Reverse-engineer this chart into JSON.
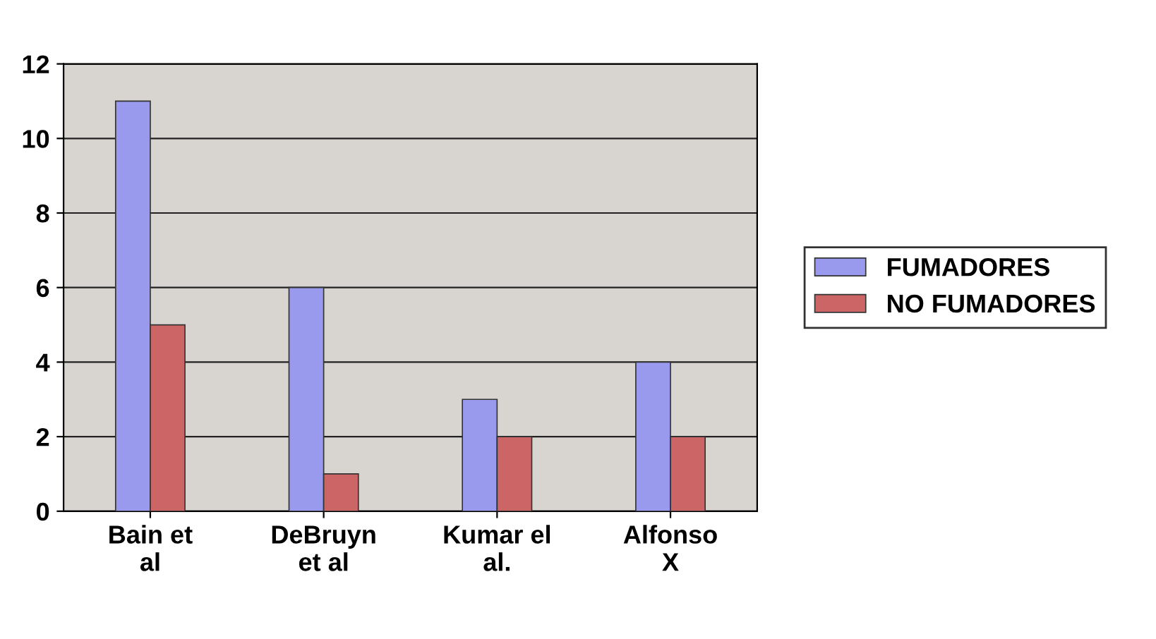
{
  "chart_data": {
    "type": "bar",
    "categories": [
      "Bain et\nal",
      "DeBruyn\net al",
      "Kumar el\nal.",
      "Alfonso\nX"
    ],
    "series": [
      {
        "name": "FUMADORES",
        "color": "#9999ee",
        "values": [
          11,
          6,
          3,
          4
        ]
      },
      {
        "name": "NO FUMADORES",
        "color": "#cc6666",
        "values": [
          5,
          1,
          2,
          2
        ]
      }
    ],
    "ylim": [
      0,
      12
    ],
    "yticks": [
      0,
      2,
      4,
      6,
      8,
      10,
      12
    ],
    "grid": "y",
    "legend": "right"
  }
}
